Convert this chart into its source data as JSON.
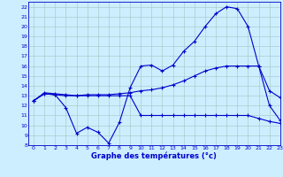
{
  "title": "Graphe des températures (°c)",
  "background_color": "#cceeff",
  "grid_color": "#aacccc",
  "line_color": "#0000cc",
  "xlim": [
    -0.5,
    23
  ],
  "ylim": [
    8,
    22.5
  ],
  "xticks": [
    0,
    1,
    2,
    3,
    4,
    5,
    6,
    7,
    8,
    9,
    10,
    11,
    12,
    13,
    14,
    15,
    16,
    17,
    18,
    19,
    20,
    21,
    22,
    23
  ],
  "yticks": [
    8,
    9,
    10,
    11,
    12,
    13,
    14,
    15,
    16,
    17,
    18,
    19,
    20,
    21,
    22
  ],
  "series": {
    "instaneous": {
      "x": [
        0,
        1,
        2,
        3,
        4,
        5,
        6,
        7,
        8,
        9,
        10,
        11,
        12,
        13,
        14,
        15,
        16,
        17,
        18,
        19,
        20,
        21,
        22,
        23
      ],
      "y": [
        12.5,
        13.2,
        13.1,
        11.8,
        9.2,
        9.8,
        9.3,
        8.2,
        10.3,
        13.8,
        16.0,
        16.1,
        15.5,
        16.1,
        17.5,
        18.5,
        20.0,
        21.3,
        22.0,
        21.8,
        20.0,
        16.0,
        12.0,
        10.5
      ]
    },
    "max_temp": {
      "x": [
        0,
        1,
        2,
        3,
        4,
        5,
        6,
        7,
        8,
        9,
        10,
        11,
        12,
        13,
        14,
        15,
        16,
        17,
        18,
        19,
        20,
        21,
        22,
        23
      ],
      "y": [
        12.5,
        13.3,
        13.2,
        13.1,
        13.0,
        13.1,
        13.1,
        13.1,
        13.2,
        13.3,
        13.5,
        13.6,
        13.8,
        14.1,
        14.5,
        15.0,
        15.5,
        15.8,
        16.0,
        16.0,
        16.0,
        16.0,
        13.5,
        12.8
      ]
    },
    "min_temp": {
      "x": [
        0,
        1,
        2,
        3,
        4,
        5,
        6,
        7,
        8,
        9,
        10,
        11,
        12,
        13,
        14,
        15,
        16,
        17,
        18,
        19,
        20,
        21,
        22,
        23
      ],
      "y": [
        12.5,
        13.2,
        13.1,
        13.0,
        13.0,
        13.0,
        13.0,
        13.0,
        13.0,
        13.0,
        11.0,
        11.0,
        11.0,
        11.0,
        11.0,
        11.0,
        11.0,
        11.0,
        11.0,
        11.0,
        11.0,
        10.7,
        10.4,
        10.2
      ]
    }
  }
}
